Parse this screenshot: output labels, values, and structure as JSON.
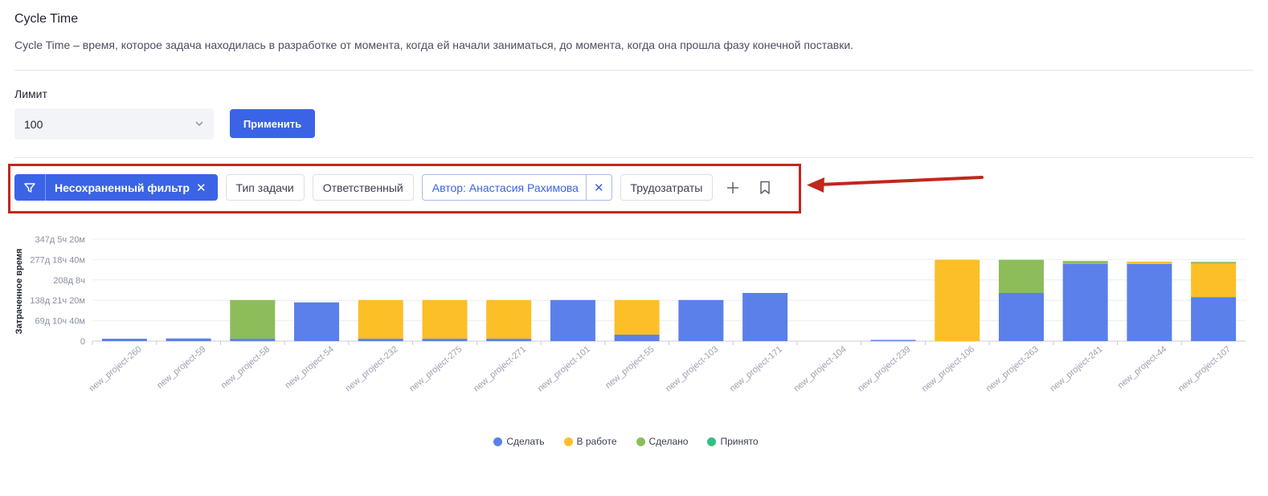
{
  "header": {
    "title": "Cycle Time",
    "description": "Cycle Time – время, которое задача находилась в разработке от момента, когда ей начали заниматься, до момента, когда она прошла фазу конечной поставки."
  },
  "limit": {
    "label": "Лимит",
    "value": "100",
    "apply_label": "Применить"
  },
  "filters": {
    "main_label": "Несохраненный фильтр",
    "task_type": "Тип задачи",
    "assignee": "Ответственный",
    "author": "Автор: Анастасия Рахимова",
    "effort": "Трудозатраты",
    "icons": [
      "filter-icon",
      "close-icon",
      "plus-icon",
      "bookmark-icon"
    ]
  },
  "colors": {
    "accent": "#3b63e6",
    "todo": "#5b80ea",
    "in_progress": "#fcbf28",
    "done": "#8cbd5a",
    "accepted": "#2ec27e",
    "annotation": "#c0281c"
  },
  "chart_data": {
    "type": "bar",
    "stacked": true,
    "ylabel": "Затраченное время",
    "ytick_labels": [
      "0",
      "69д 10ч 40м",
      "138д 21ч 20м",
      "208д 8ч",
      "277д 18ч 40м",
      "347д 5ч 20м"
    ],
    "ylim": [
      0,
      347.2
    ],
    "categories": [
      "new_project-260",
      "new_project-59",
      "new_project-58",
      "new_project-54",
      "new_project-232",
      "new_project-275",
      "new_project-271",
      "new_project-101",
      "new_project-55",
      "new_project-103",
      "new_project-171",
      "new_project-104",
      "new_project-239",
      "new_project-106",
      "new_project-263",
      "new_project-241",
      "new_project-44",
      "new_project-107"
    ],
    "series": [
      {
        "name": "Сделать",
        "color": "#5b80ea",
        "values": [
          8,
          9,
          8,
          132,
          8,
          8,
          8,
          140,
          22,
          140,
          164,
          0,
          4,
          0,
          164,
          263,
          263,
          150
        ]
      },
      {
        "name": "В работе",
        "color": "#fcbf28",
        "values": [
          0,
          0,
          0,
          0,
          132,
          132,
          132,
          0,
          118,
          0,
          0,
          0,
          0,
          277,
          0,
          0,
          8,
          114
        ]
      },
      {
        "name": "Сделано",
        "color": "#8cbd5a",
        "values": [
          0,
          0,
          132,
          0,
          0,
          0,
          0,
          0,
          0,
          0,
          0,
          0,
          0,
          0,
          113,
          10,
          0,
          6
        ]
      },
      {
        "name": "Принято",
        "color": "#2ec27e",
        "values": [
          0,
          0,
          0,
          0,
          0,
          0,
          0,
          0,
          0,
          0,
          0,
          0,
          0,
          0,
          0,
          0,
          0,
          0
        ]
      }
    ],
    "legend_position": "bottom",
    "grid": true
  }
}
